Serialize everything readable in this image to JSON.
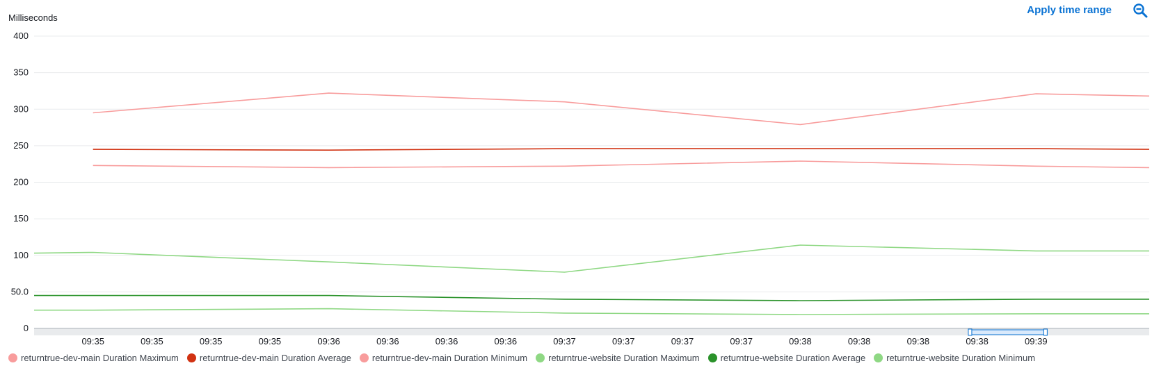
{
  "header": {
    "apply_label": "Apply time range",
    "zoom_icon": "zoom-out-icon"
  },
  "chart_data": {
    "type": "line",
    "ylabel": "Milliseconds",
    "ylim": [
      0,
      400
    ],
    "yticks": [
      "0",
      "50.0",
      "100",
      "150",
      "200",
      "250",
      "300",
      "350",
      "400"
    ],
    "ytick_values": [
      0,
      50,
      100,
      150,
      200,
      250,
      300,
      350,
      400
    ],
    "x_minute_range": [
      34.6,
      39.33
    ],
    "xticks": [
      {
        "label": "09:35",
        "minute": 34.85
      },
      {
        "label": "09:35",
        "minute": 35.1
      },
      {
        "label": "09:35",
        "minute": 35.35
      },
      {
        "label": "09:35",
        "minute": 35.6
      },
      {
        "label": "09:36",
        "minute": 35.85
      },
      {
        "label": "09:36",
        "minute": 36.1
      },
      {
        "label": "09:36",
        "minute": 36.35
      },
      {
        "label": "09:36",
        "minute": 36.6
      },
      {
        "label": "09:37",
        "minute": 36.85
      },
      {
        "label": "09:37",
        "minute": 37.1
      },
      {
        "label": "09:37",
        "minute": 37.35
      },
      {
        "label": "09:37",
        "minute": 37.6
      },
      {
        "label": "09:38",
        "minute": 37.85
      },
      {
        "label": "09:38",
        "minute": 38.1
      },
      {
        "label": "09:38",
        "minute": 38.35
      },
      {
        "label": "09:38",
        "minute": 38.6
      },
      {
        "label": "09:39",
        "minute": 38.85
      }
    ],
    "grid": true,
    "legend_position": "bottom",
    "series": [
      {
        "name": "returntrue-dev-main Duration Maximum",
        "color": "#f89c9c",
        "points": [
          [
            34.85,
            295
          ],
          [
            35.85,
            322
          ],
          [
            36.85,
            310
          ],
          [
            37.85,
            279
          ],
          [
            38.85,
            321
          ],
          [
            39.33,
            318
          ]
        ]
      },
      {
        "name": "returntrue-dev-main Duration Average",
        "color": "#d13212",
        "points": [
          [
            34.85,
            245
          ],
          [
            35.85,
            244
          ],
          [
            36.85,
            246
          ],
          [
            37.85,
            246
          ],
          [
            38.85,
            246
          ],
          [
            39.33,
            245
          ]
        ]
      },
      {
        "name": "returntrue-dev-main Duration Minimum",
        "color": "#f89c9c",
        "points": [
          [
            34.85,
            223
          ],
          [
            35.85,
            220
          ],
          [
            36.85,
            222
          ],
          [
            37.85,
            229
          ],
          [
            38.85,
            222
          ],
          [
            39.33,
            220
          ]
        ]
      },
      {
        "name": "returntrue-website Duration Maximum",
        "color": "#8fd884",
        "points": [
          [
            34.6,
            103
          ],
          [
            34.85,
            104
          ],
          [
            35.85,
            91
          ],
          [
            36.85,
            77
          ],
          [
            37.85,
            114
          ],
          [
            38.85,
            106
          ],
          [
            39.33,
            106
          ]
        ]
      },
      {
        "name": "returntrue-website Duration Average",
        "color": "#2a922a",
        "points": [
          [
            34.6,
            45
          ],
          [
            34.85,
            45
          ],
          [
            35.85,
            45
          ],
          [
            36.85,
            40
          ],
          [
            37.85,
            38
          ],
          [
            38.85,
            40
          ],
          [
            39.33,
            40
          ]
        ]
      },
      {
        "name": "returntrue-website Duration Minimum",
        "color": "#8fd884",
        "points": [
          [
            34.6,
            25
          ],
          [
            34.85,
            25
          ],
          [
            35.85,
            27
          ],
          [
            36.85,
            21
          ],
          [
            37.85,
            19
          ],
          [
            38.85,
            20
          ],
          [
            39.33,
            20
          ]
        ]
      }
    ],
    "legend_swatches": [
      "#f89c9c",
      "#d13212",
      "#f89c9c",
      "#8fd884",
      "#2a922a",
      "#8fd884"
    ],
    "time_brush": {
      "start_minute": 38.57,
      "end_minute": 38.89
    }
  }
}
